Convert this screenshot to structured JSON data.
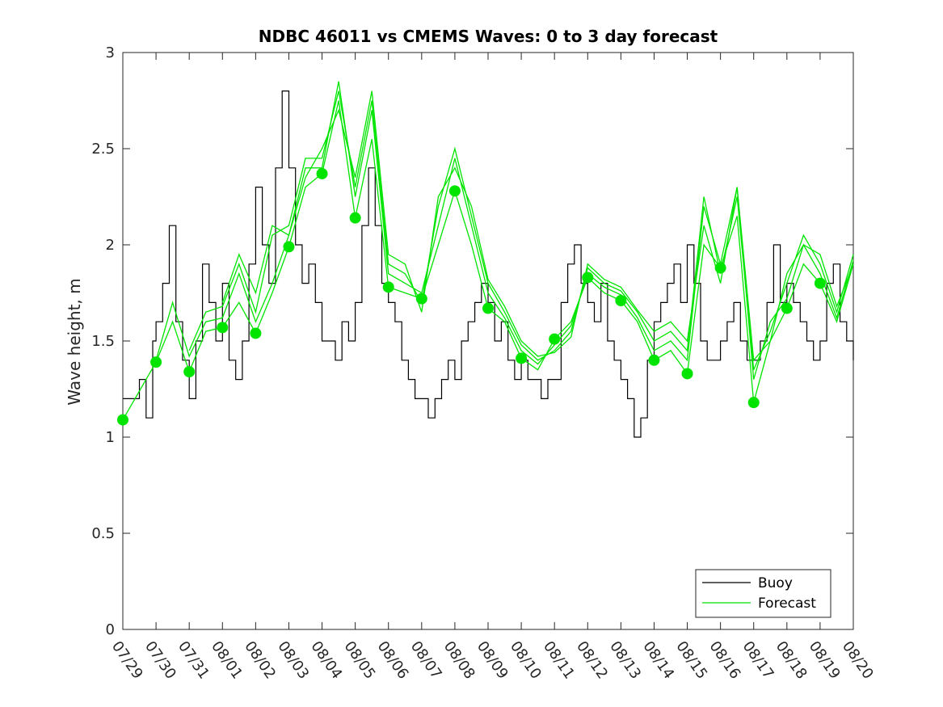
{
  "chart_data": {
    "type": "line",
    "title": "NDBC 46011 vs CMEMS Waves: 0 to 3 day forecast",
    "xlabel": "",
    "ylabel": "Wave height, m",
    "xlim": [
      0,
      22
    ],
    "ylim": [
      0,
      3
    ],
    "y_ticks": [
      "0",
      "0.5",
      "1",
      "1.5",
      "2",
      "2.5",
      "3"
    ],
    "x_ticks": [
      "07/29",
      "07/30",
      "07/31",
      "08/01",
      "08/02",
      "08/03",
      "08/04",
      "08/05",
      "08/06",
      "08/07",
      "08/08",
      "08/09",
      "08/10",
      "08/11",
      "08/12",
      "08/13",
      "08/14",
      "08/15",
      "08/16",
      "08/17",
      "08/18",
      "08/19",
      "08/20"
    ],
    "grid": false,
    "legend": {
      "position": "bottom-right",
      "entries": [
        "Buoy",
        "Forecast"
      ]
    },
    "colors": {
      "buoy": "#000000",
      "forecast": "#00e400",
      "marker": "#00e400"
    },
    "buoy": {
      "x": [
        0,
        0.3,
        0.5,
        0.7,
        0.9,
        1.0,
        1.2,
        1.4,
        1.6,
        1.8,
        2.0,
        2.2,
        2.4,
        2.6,
        2.8,
        3.0,
        3.2,
        3.4,
        3.6,
        3.8,
        4.0,
        4.2,
        4.4,
        4.6,
        4.8,
        5.0,
        5.2,
        5.4,
        5.6,
        5.8,
        6.0,
        6.2,
        6.4,
        6.6,
        6.8,
        7.0,
        7.2,
        7.4,
        7.6,
        7.8,
        8.0,
        8.2,
        8.4,
        8.6,
        8.8,
        9.0,
        9.2,
        9.4,
        9.6,
        9.8,
        10.0,
        10.2,
        10.4,
        10.6,
        10.8,
        11.0,
        11.2,
        11.4,
        11.6,
        11.8,
        12.0,
        12.2,
        12.4,
        12.6,
        12.8,
        13.0,
        13.2,
        13.4,
        13.6,
        13.8,
        14.0,
        14.2,
        14.4,
        14.6,
        14.8,
        15.0,
        15.2,
        15.4,
        15.6,
        15.8,
        16.0,
        16.2,
        16.4,
        16.6,
        16.8,
        17.0,
        17.2,
        17.4,
        17.6,
        17.8,
        18.0,
        18.2,
        18.4,
        18.6,
        18.8,
        19.0,
        19.2,
        19.4,
        19.6,
        19.8,
        20.0,
        20.2,
        20.4,
        20.6,
        20.8,
        21.0,
        21.2,
        21.4,
        21.6,
        21.8,
        22.0
      ],
      "y": [
        1.2,
        1.2,
        1.3,
        1.1,
        1.5,
        1.6,
        1.8,
        2.1,
        1.6,
        1.4,
        1.2,
        1.5,
        1.9,
        1.7,
        1.5,
        1.8,
        1.4,
        1.3,
        1.5,
        1.9,
        2.3,
        2.0,
        1.8,
        2.4,
        2.8,
        2.4,
        2.0,
        1.8,
        1.9,
        1.7,
        1.5,
        1.5,
        1.4,
        1.6,
        1.5,
        1.7,
        2.1,
        2.4,
        2.1,
        1.8,
        1.7,
        1.6,
        1.4,
        1.3,
        1.2,
        1.2,
        1.1,
        1.2,
        1.3,
        1.4,
        1.3,
        1.5,
        1.6,
        1.7,
        1.8,
        1.7,
        1.5,
        1.6,
        1.4,
        1.3,
        1.4,
        1.3,
        1.3,
        1.2,
        1.3,
        1.3,
        1.7,
        1.9,
        2.0,
        1.8,
        1.7,
        1.6,
        1.8,
        1.5,
        1.4,
        1.3,
        1.2,
        1.0,
        1.1,
        1.4,
        1.6,
        1.7,
        1.8,
        1.9,
        1.7,
        2.0,
        1.8,
        1.5,
        1.4,
        1.4,
        1.5,
        1.6,
        1.7,
        1.5,
        1.4,
        1.4,
        1.5,
        1.7,
        2.0,
        1.7,
        1.8,
        1.7,
        1.6,
        1.5,
        1.4,
        1.5,
        1.8,
        1.9,
        1.6,
        1.5,
        1.4
      ]
    },
    "forecast_series": [
      {
        "name": "Forecast 1",
        "x": [
          0,
          1,
          1.5,
          2,
          2.5,
          3,
          3.5,
          4,
          4.5,
          5,
          5.5,
          6,
          6.5,
          7,
          7.5,
          8,
          8.5,
          9,
          9.5,
          10,
          10.5,
          11,
          11.5,
          12,
          12.5,
          13,
          13.5,
          14,
          14.5,
          15,
          15.5,
          16,
          16.5,
          17,
          17.5,
          18,
          18.5,
          19,
          19.5,
          20,
          20.5,
          21,
          21.5,
          22
        ],
        "y": [
          1.09,
          1.39,
          1.6,
          1.34,
          1.55,
          1.57,
          1.7,
          1.54,
          1.75,
          1.99,
          2.3,
          2.37,
          2.75,
          2.14,
          2.55,
          1.78,
          1.75,
          1.72,
          2.0,
          2.28,
          2.0,
          1.67,
          1.6,
          1.41,
          1.35,
          1.51,
          1.6,
          1.83,
          1.75,
          1.71,
          1.6,
          1.4,
          1.45,
          1.33,
          2.0,
          1.88,
          2.15,
          1.18,
          1.5,
          1.67,
          1.9,
          1.8,
          1.6,
          1.9
        ]
      },
      {
        "name": "Forecast 2",
        "x": [
          1,
          1.5,
          2,
          2.5,
          3,
          3.5,
          4,
          4.5,
          5,
          5.5,
          6,
          6.5,
          7,
          7.5,
          8,
          8.5,
          9,
          9.5,
          10,
          10.5,
          11,
          11.5,
          12,
          12.5,
          13,
          13.5,
          14,
          14.5,
          15,
          15.5,
          16,
          16.5,
          17,
          17.5,
          18,
          18.5,
          19,
          19.5,
          20,
          20.5,
          21,
          21.5,
          22
        ],
        "y": [
          1.4,
          1.7,
          1.42,
          1.6,
          1.62,
          1.85,
          1.6,
          1.8,
          2.05,
          2.4,
          2.4,
          2.85,
          2.25,
          2.7,
          1.85,
          1.8,
          1.75,
          2.1,
          2.45,
          2.1,
          1.75,
          1.62,
          1.45,
          1.38,
          1.48,
          1.58,
          1.85,
          1.78,
          1.74,
          1.62,
          1.45,
          1.5,
          1.4,
          2.2,
          1.9,
          2.3,
          1.3,
          1.6,
          1.72,
          2.0,
          1.85,
          1.62,
          1.92
        ]
      },
      {
        "name": "Forecast 3",
        "x": [
          2,
          2.5,
          3,
          3.5,
          4,
          4.5,
          5,
          5.5,
          6,
          6.5,
          7,
          7.5,
          8,
          8.5,
          9,
          9.5,
          10,
          10.5,
          11,
          11.5,
          12,
          12.5,
          13,
          13.5,
          14,
          14.5,
          15,
          15.5,
          16,
          16.5,
          17,
          17.5,
          18,
          18.5,
          19,
          19.5,
          20,
          20.5,
          21,
          21.5,
          22
        ],
        "y": [
          1.45,
          1.65,
          1.68,
          1.9,
          1.65,
          2.05,
          2.1,
          2.45,
          2.45,
          2.8,
          2.3,
          2.75,
          1.9,
          1.85,
          1.7,
          2.2,
          2.5,
          2.15,
          1.8,
          1.65,
          1.48,
          1.4,
          1.45,
          1.55,
          1.88,
          1.8,
          1.76,
          1.65,
          1.5,
          1.55,
          1.45,
          2.25,
          1.85,
          2.25,
          1.35,
          1.55,
          1.8,
          2.05,
          1.9,
          1.65,
          1.95
        ]
      },
      {
        "name": "Forecast 4",
        "x": [
          3,
          3.5,
          4,
          4.5,
          5,
          5.5,
          6,
          6.5,
          7,
          7.5,
          8,
          8.5,
          9,
          9.5,
          10,
          10.5,
          11,
          11.5,
          12,
          12.5,
          13,
          13.5,
          14,
          14.5,
          15,
          15.5,
          16,
          16.5,
          17,
          17.5,
          18,
          18.5,
          19,
          19.5,
          20,
          20.5,
          21,
          21.5,
          22
        ],
        "y": [
          1.7,
          1.95,
          1.75,
          2.1,
          2.05,
          2.35,
          2.5,
          2.7,
          2.35,
          2.8,
          1.95,
          1.9,
          1.65,
          2.25,
          2.4,
          2.2,
          1.82,
          1.68,
          1.5,
          1.42,
          1.44,
          1.52,
          1.9,
          1.82,
          1.78,
          1.66,
          1.55,
          1.6,
          1.5,
          2.1,
          1.8,
          2.3,
          1.4,
          1.5,
          1.85,
          2.0,
          1.95,
          1.68,
          1.9
        ]
      }
    ],
    "daily_markers": {
      "x": [
        0,
        1,
        2,
        3,
        4,
        5,
        6,
        7,
        8,
        9,
        10,
        11,
        12,
        13,
        14,
        15,
        16,
        17,
        18,
        19,
        20,
        21
      ],
      "y": [
        1.09,
        1.39,
        1.34,
        1.57,
        1.54,
        1.99,
        2.37,
        2.14,
        1.78,
        1.72,
        2.28,
        1.67,
        1.41,
        1.51,
        1.83,
        1.71,
        1.4,
        1.33,
        1.88,
        1.18,
        1.67,
        1.8
      ]
    }
  }
}
